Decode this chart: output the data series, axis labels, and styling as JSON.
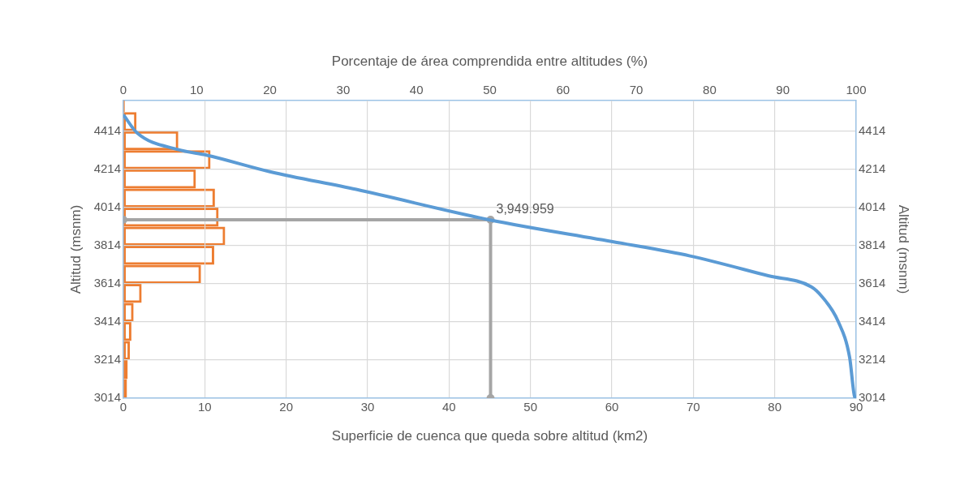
{
  "chart_data": [
    {
      "type": "line",
      "xlabel": "Superficie de cuenca que queda sobre altitud (km2)",
      "ylabel": "Altitud (msnm)",
      "y2label": "Altitud (msnm)",
      "xlim": [
        0,
        90
      ],
      "xticks": [
        0,
        10,
        20,
        30,
        40,
        50,
        60,
        70,
        80,
        90
      ],
      "ylim": [
        3014,
        4575
      ],
      "yticks": [
        3014,
        3214,
        3414,
        3614,
        3814,
        4014,
        4214,
        4414
      ],
      "y2lim": [
        3014,
        4575
      ],
      "y2ticks": [
        3014,
        3214,
        3414,
        3614,
        3814,
        4014,
        4214,
        4414
      ],
      "grid": true,
      "series": [
        {
          "color": "#5b9bd5",
          "x": [
            0,
            1.7,
            6.7,
            10.3,
            18,
            28.6,
            44.9,
            60.6,
            69.6,
            79.2,
            84.5,
            85.8,
            87.8,
            89.2,
            89.8,
            90
          ],
          "values": [
            4501,
            4405,
            4318,
            4288,
            4202,
            4109,
            3950,
            3831,
            3760,
            3656,
            3598,
            3547,
            3416,
            3228,
            3024,
            3014
          ]
        },
        {
          "color": "#a5a5a5",
          "marker": "circle",
          "x": [
            0,
            45.1,
            45.1
          ],
          "values": [
            3949.959,
            3949.959,
            3014
          ],
          "value_labels": [
            null,
            "3,949.959",
            null
          ]
        }
      ]
    },
    {
      "type": "histogram",
      "orientation": "horizontal",
      "xlabel": "Porcentaje de área comprendida entre altitudes (%)",
      "xlim": [
        0,
        100
      ],
      "xticks": [
        0,
        10,
        20,
        30,
        40,
        50,
        60,
        70,
        80,
        90,
        100
      ],
      "ylim": [
        3014,
        4575
      ],
      "tick_labels": "x",
      "color": "#ed7d31",
      "bins": [
        3014,
        3114,
        3214,
        3314,
        3414,
        3514,
        3614,
        3714,
        3814,
        3914,
        4014,
        4114,
        4214,
        4314,
        4414,
        4514,
        4575
      ],
      "values": [
        0.5,
        0.6,
        0.9,
        1.1,
        1.4,
        2.5,
        10.6,
        12.4,
        13.9,
        13.0,
        12.5,
        9.9,
        11.9,
        7.5,
        1.8,
        0.2
      ]
    }
  ]
}
